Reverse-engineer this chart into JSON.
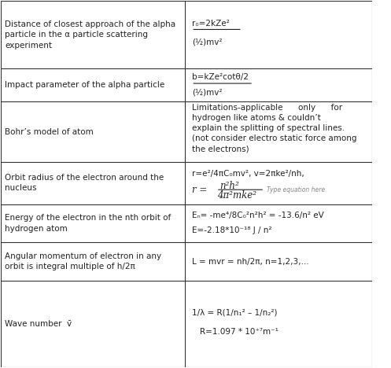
{
  "col_split": 0.495,
  "border_color": "#333333",
  "bg_color": "#ffffff",
  "text_color": "#222222",
  "font_size": 7.5,
  "row_tops": [
    1.0,
    0.815,
    0.725,
    0.56,
    0.445,
    0.34,
    0.235,
    0.0
  ],
  "left_texts": [
    "Distance of closest approach of the alpha\nparticle in the α particle scattering\nexperiment",
    "Impact parameter of the alpha particle",
    "Bohr’s model of atom",
    "Orbit radius of the electron around the\nnucleus",
    "Energy of the electron in the nth orbit of\nhydrogen atom",
    "Angular momentum of electron in any\norbit is integral multiple of h/2π",
    "Wave number  v̄"
  ],
  "bohr_text": "Limitations-applicable      only      for\nhydrogen like atoms & couldn’t\nexplain the splitting of spectral lines.\n(not consider electro static force among\nthe electrons)",
  "lw": 0.8
}
